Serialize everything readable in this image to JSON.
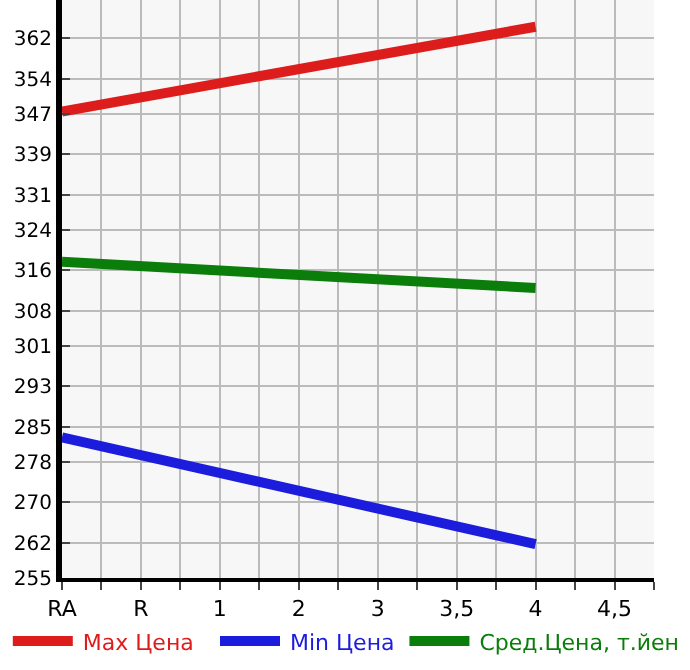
{
  "chart_data": {
    "type": "line",
    "categories": [
      "RA",
      "R",
      "1",
      "2",
      "3",
      "3,5",
      "4",
      "4,5"
    ],
    "series": [
      {
        "name": "Max Цена",
        "color": "#dd1c1c",
        "values": [
          347.5,
          null,
          null,
          null,
          null,
          null,
          364.3,
          null
        ]
      },
      {
        "name": "Min Цена",
        "color": "#1c1cdd",
        "values": [
          282.9,
          null,
          null,
          null,
          null,
          null,
          261.7,
          null
        ]
      },
      {
        "name": "Сред.Цена, т.йен",
        "color": "#0a7d0a",
        "values": [
          317.7,
          null,
          null,
          null,
          null,
          null,
          312.5,
          null
        ]
      }
    ],
    "ylim": [
      255,
      369.6
    ],
    "yticks": [
      362,
      354,
      347,
      339,
      331,
      324,
      316,
      308,
      301,
      293,
      285,
      278,
      270,
      262,
      255
    ],
    "grid": true,
    "legend": "bottom",
    "marker": "none",
    "line_style": "solid"
  }
}
